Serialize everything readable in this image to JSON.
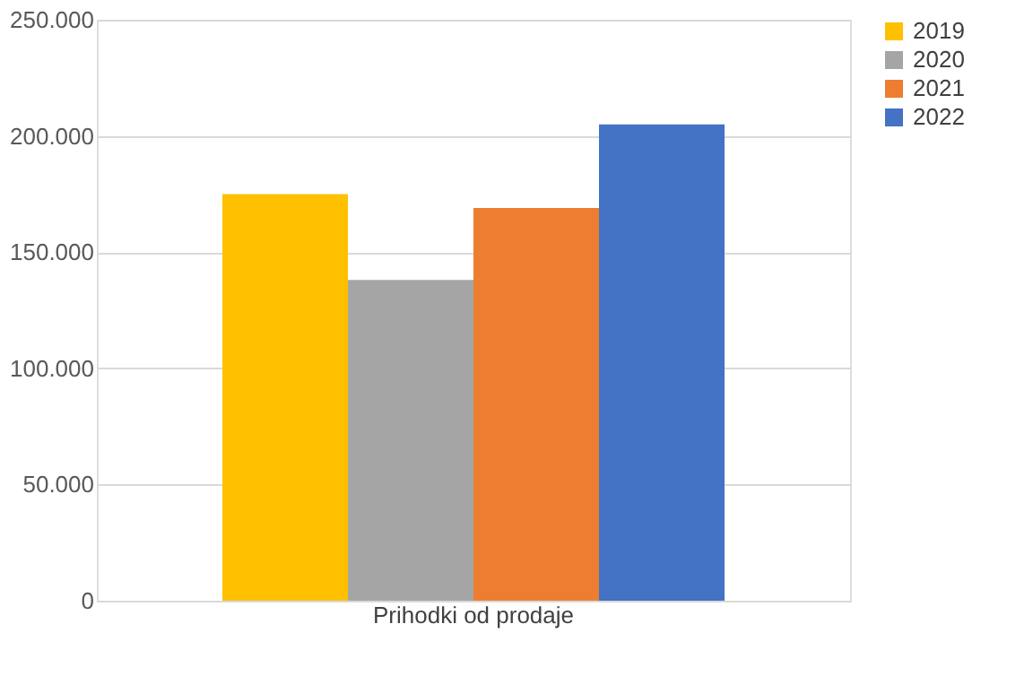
{
  "chart_data": {
    "type": "bar",
    "categories": [
      "Prihodki od prodaje"
    ],
    "series": [
      {
        "name": "2019",
        "color": "#ffc000",
        "values": [
          175000
        ]
      },
      {
        "name": "2020",
        "color": "#a5a5a5",
        "values": [
          138000
        ]
      },
      {
        "name": "2021",
        "color": "#ed7d31",
        "values": [
          169000
        ]
      },
      {
        "name": "2022",
        "color": "#4472c4",
        "values": [
          205000
        ]
      }
    ],
    "ylim": [
      0,
      250000
    ],
    "yticks": [
      0,
      {
        "value": 50000,
        "label": "50.000"
      },
      {
        "value": 100000,
        "label": "100.000"
      },
      {
        "value": 150000,
        "label": "150.000"
      },
      {
        "value": 200000,
        "label": "200.000"
      },
      {
        "value": 250000,
        "label": "250.000"
      }
    ],
    "grid": "y",
    "legend": "right"
  }
}
